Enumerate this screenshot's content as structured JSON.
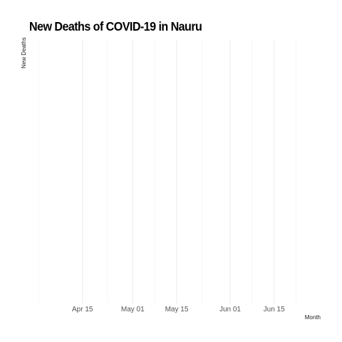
{
  "chart_data": {
    "type": "line",
    "title": "New Deaths of COVID-19 in Nauru",
    "xlabel": "Month",
    "ylabel": "New Deaths",
    "x_axis": {
      "type": "date",
      "range": [
        "2020-04-01",
        "2020-06-28"
      ],
      "ticks": [
        {
          "date": "2020-04-15",
          "label": "Apr 15"
        },
        {
          "date": "2020-05-01",
          "label": "May 01"
        },
        {
          "date": "2020-05-15",
          "label": "May 15"
        },
        {
          "date": "2020-06-01",
          "label": "Jun 01"
        },
        {
          "date": "2020-06-15",
          "label": "Jun 15"
        }
      ],
      "minor_ticks": [
        "2020-04-01",
        "2020-04-23",
        "2020-05-08",
        "2020-05-23",
        "2020-06-08",
        "2020-06-22"
      ]
    },
    "y_axis": {
      "ticks": []
    },
    "grid": true,
    "series": []
  },
  "colors": {
    "grid_major": "#ebebeb",
    "grid_minor": "#f2f2f2"
  }
}
